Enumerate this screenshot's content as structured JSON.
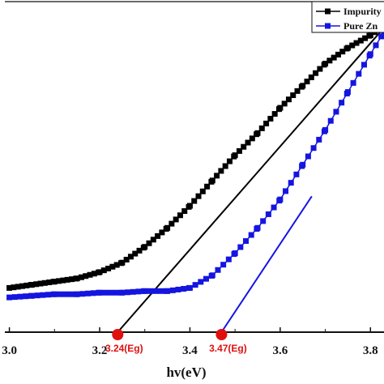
{
  "chart_data": {
    "type": "line",
    "xlabel": "hv(eV)",
    "ylabel": "",
    "xlim": [
      2.99,
      3.83
    ],
    "ylim": [
      0,
      1
    ],
    "x_ticks": [
      3.0,
      3.2,
      3.4,
      3.6,
      3.8
    ],
    "x_tick_labels": [
      "3.0",
      "3.2",
      "3.4",
      "3.6",
      "3.8"
    ],
    "legend_position": "top-right",
    "series": [
      {
        "name": "Impurity",
        "color": "#000000",
        "marker": "square",
        "points": [
          [
            3.0,
            0.14
          ],
          [
            3.05,
            0.15
          ],
          [
            3.1,
            0.16
          ],
          [
            3.15,
            0.17
          ],
          [
            3.2,
            0.19
          ],
          [
            3.25,
            0.22
          ],
          [
            3.3,
            0.27
          ],
          [
            3.35,
            0.33
          ],
          [
            3.4,
            0.4
          ],
          [
            3.45,
            0.48
          ],
          [
            3.5,
            0.56
          ],
          [
            3.55,
            0.63
          ],
          [
            3.6,
            0.71
          ],
          [
            3.65,
            0.78
          ],
          [
            3.7,
            0.85
          ],
          [
            3.75,
            0.9
          ],
          [
            3.8,
            0.94
          ],
          [
            3.83,
            0.97
          ]
        ]
      },
      {
        "name": "Pure Zn",
        "color": "#1515e0",
        "marker": "square",
        "points": [
          [
            3.0,
            0.11
          ],
          [
            3.05,
            0.115
          ],
          [
            3.1,
            0.12
          ],
          [
            3.15,
            0.12
          ],
          [
            3.2,
            0.125
          ],
          [
            3.25,
            0.125
          ],
          [
            3.3,
            0.13
          ],
          [
            3.35,
            0.13
          ],
          [
            3.4,
            0.14
          ],
          [
            3.45,
            0.18
          ],
          [
            3.5,
            0.25
          ],
          [
            3.55,
            0.33
          ],
          [
            3.6,
            0.42
          ],
          [
            3.65,
            0.53
          ],
          [
            3.7,
            0.64
          ],
          [
            3.75,
            0.76
          ],
          [
            3.8,
            0.88
          ],
          [
            3.83,
            0.95
          ]
        ]
      }
    ],
    "tangent_lines": [
      {
        "color": "#000000",
        "from": [
          3.24,
          0.0
        ],
        "to": [
          3.84,
          0.98
        ]
      },
      {
        "color": "#1515e0",
        "from": [
          3.47,
          0.0
        ],
        "to": [
          3.67,
          0.43
        ]
      }
    ],
    "annotations": [
      {
        "x": 3.24,
        "label": "3.24(Eg)",
        "color": "#e01010"
      },
      {
        "x": 3.47,
        "label": "3.47(Eg)",
        "color": "#e01010"
      }
    ]
  }
}
